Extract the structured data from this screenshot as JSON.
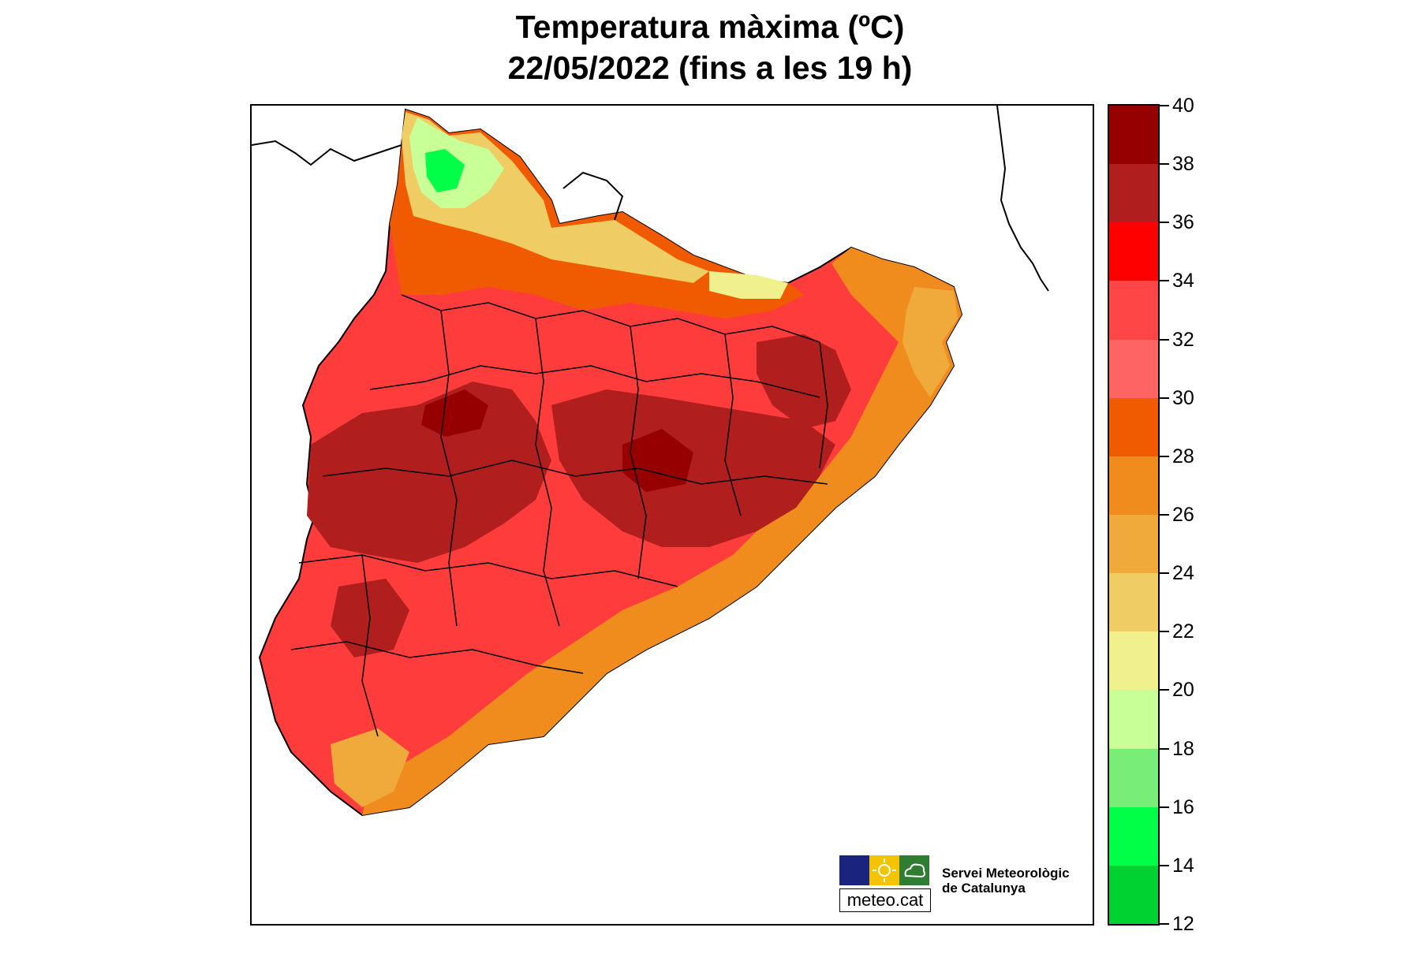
{
  "title": {
    "line1": "Temperatura màxima (ºC)",
    "line2": "22/05/2022 (fins a les 19 h)"
  },
  "map": {
    "region": "Catalunya",
    "variable": "Temperatura màxima",
    "units": "ºC"
  },
  "legend": {
    "ticks": [
      "40",
      "38",
      "36",
      "34",
      "32",
      "30",
      "28",
      "26",
      "24",
      "22",
      "20",
      "18",
      "16",
      "14",
      "12"
    ],
    "colors_top_to_bottom": [
      "#960000",
      "#b01e1e",
      "#ff0000",
      "#ff4646",
      "#ff6464",
      "#f05a00",
      "#f08c1e",
      "#f0aa3c",
      "#f0cd64",
      "#f0f08c",
      "#c8ff96",
      "#78ee78",
      "#00ff46",
      "#00d232"
    ]
  },
  "branding": {
    "logo_text": "meteo.cat",
    "org_line1": "Servei Meteorològic",
    "org_line2": "de Catalunya",
    "logo_colors": [
      "#1a237e",
      "#f5c400",
      "#2e7d32"
    ]
  }
}
